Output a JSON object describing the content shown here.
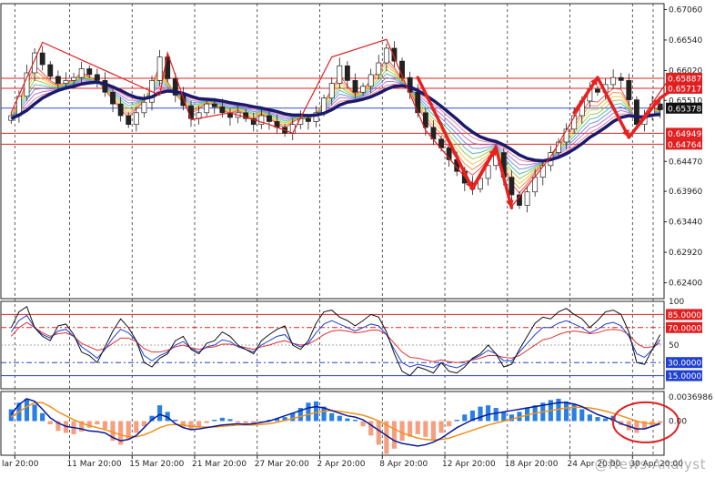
{
  "watermark": "@News Analyst",
  "chart_data": [
    {
      "panel": "price",
      "type": "candlestick",
      "ylim": [
        0.6213,
        0.6716
      ],
      "y_ticks": [
        "0.67060",
        "0.66540",
        "0.66020",
        "0.65510",
        "0.64470",
        "0.63960",
        "0.63440",
        "0.62920",
        "0.62400"
      ],
      "y_tick_values": [
        0.6706,
        0.6654,
        0.6602,
        0.6551,
        0.6447,
        0.6396,
        0.6344,
        0.6292,
        0.624
      ],
      "price_labels": [
        {
          "text": "0.65887",
          "value": 0.65887,
          "color": "#e02020"
        },
        {
          "text": "0.65717",
          "value": 0.65717,
          "color": "#e02020"
        },
        {
          "text": "0.65378",
          "value": 0.65378,
          "color": "#111111"
        },
        {
          "text": "0.64949",
          "value": 0.64949,
          "color": "#e02020"
        },
        {
          "text": "0.64764",
          "value": 0.64764,
          "color": "#e02020"
        }
      ],
      "levels": [
        {
          "value": 0.65887,
          "color": "#e02020"
        },
        {
          "value": 0.65717,
          "color": "#e02020"
        },
        {
          "value": 0.65378,
          "color": "#3050d0"
        },
        {
          "value": 0.64949,
          "color": "#e02020"
        },
        {
          "value": 0.64764,
          "color": "#e02020"
        }
      ],
      "close": [
        0.6525,
        0.6558,
        0.6598,
        0.6632,
        0.6612,
        0.6592,
        0.658,
        0.6585,
        0.659,
        0.6605,
        0.6595,
        0.6585,
        0.6565,
        0.6545,
        0.6525,
        0.651,
        0.653,
        0.6548,
        0.6585,
        0.6625,
        0.6588,
        0.656,
        0.6542,
        0.652,
        0.653,
        0.6545,
        0.654,
        0.653,
        0.6522,
        0.653,
        0.652,
        0.651,
        0.6525,
        0.6515,
        0.6505,
        0.6495,
        0.651,
        0.652,
        0.6515,
        0.653,
        0.6555,
        0.658,
        0.661,
        0.6585,
        0.6565,
        0.6575,
        0.6595,
        0.6615,
        0.664,
        0.6618,
        0.659,
        0.6565,
        0.653,
        0.6505,
        0.6485,
        0.647,
        0.645,
        0.643,
        0.641,
        0.64,
        0.6418,
        0.644,
        0.6462,
        0.642,
        0.639,
        0.6372,
        0.6395,
        0.642,
        0.644,
        0.6462,
        0.648,
        0.6502,
        0.6525,
        0.655,
        0.657,
        0.6565,
        0.6578,
        0.659,
        0.6585,
        0.6552,
        0.651,
        0.6525,
        0.6545,
        0.6535
      ],
      "ema": [
        0.652,
        0.6526,
        0.6534,
        0.6545,
        0.6555,
        0.6562,
        0.6568,
        0.6572,
        0.6575,
        0.6579,
        0.6581,
        0.6582,
        0.6579,
        0.6574,
        0.6568,
        0.6561,
        0.6556,
        0.6554,
        0.6557,
        0.6564,
        0.6567,
        0.6566,
        0.6563,
        0.6558,
        0.6554,
        0.6553,
        0.6552,
        0.655,
        0.6547,
        0.6545,
        0.6543,
        0.654,
        0.6538,
        0.6535,
        0.6532,
        0.6528,
        0.6526,
        0.6526,
        0.6525,
        0.6526,
        0.6529,
        0.6535,
        0.6543,
        0.6548,
        0.655,
        0.6553,
        0.6557,
        0.6563,
        0.657,
        0.6575,
        0.6576,
        0.6574,
        0.6568,
        0.656,
        0.6551,
        0.6541,
        0.653,
        0.6519,
        0.6507,
        0.6497,
        0.6489,
        0.6484,
        0.6481,
        0.6475,
        0.6467,
        0.6458,
        0.6452,
        0.6449,
        0.6448,
        0.645,
        0.6454,
        0.646,
        0.6468,
        0.6477,
        0.6488,
        0.6496,
        0.6505,
        0.6515,
        0.6522,
        0.6525,
        0.6523,
        0.6523,
        0.6526,
        0.6527
      ],
      "annotation_zigzag": [
        [
          0,
          0.653
        ],
        [
          4,
          0.665
        ],
        [
          19,
          0.656
        ],
        [
          20,
          0.6632
        ],
        [
          23,
          0.6518
        ],
        [
          28,
          0.653
        ],
        [
          33,
          0.651
        ],
        [
          36,
          0.6495
        ],
        [
          41,
          0.6625
        ],
        [
          48,
          0.6655
        ],
        [
          53,
          0.65
        ],
        [
          59,
          0.6405
        ],
        [
          62,
          0.6475
        ],
        [
          64,
          0.637
        ],
        [
          69,
          0.6455
        ],
        [
          75,
          0.659
        ],
        [
          79,
          0.6488
        ],
        [
          84,
          0.6585
        ]
      ]
    },
    {
      "panel": "oscillator",
      "type": "line",
      "ylim": [
        0,
        100
      ],
      "y_ticks": [
        "100",
        "50"
      ],
      "y_tick_values": [
        100,
        50
      ],
      "levels": [
        {
          "text": "85.0000",
          "value": 85,
          "color": "#e02020"
        },
        {
          "text": "70.0000",
          "value": 70,
          "color": "#e02020"
        },
        {
          "text": "30.0000",
          "value": 30,
          "color": "#2040d0"
        },
        {
          "text": "15.0000",
          "value": 15,
          "color": "#2040d0"
        }
      ],
      "series_black": [
        70,
        88,
        94,
        70,
        60,
        55,
        72,
        74,
        62,
        42,
        38,
        30,
        48,
        66,
        80,
        70,
        55,
        30,
        25,
        35,
        40,
        55,
        60,
        45,
        40,
        52,
        55,
        65,
        60,
        50,
        45,
        40,
        55,
        62,
        68,
        72,
        50,
        45,
        55,
        75,
        88,
        90,
        82,
        78,
        72,
        78,
        85,
        82,
        65,
        40,
        20,
        15,
        25,
        22,
        18,
        30,
        20,
        18,
        25,
        35,
        40,
        50,
        40,
        25,
        28,
        45,
        60,
        75,
        82,
        80,
        88,
        92,
        85,
        80,
        70,
        78,
        88,
        90,
        85,
        65,
        30,
        28,
        45,
        62
      ],
      "series_blue": [
        65,
        78,
        84,
        70,
        62,
        58,
        66,
        68,
        60,
        48,
        42,
        35,
        45,
        58,
        68,
        64,
        55,
        38,
        32,
        38,
        42,
        50,
        54,
        46,
        42,
        48,
        50,
        56,
        54,
        48,
        45,
        42,
        50,
        55,
        60,
        62,
        52,
        48,
        52,
        64,
        74,
        78,
        74,
        70,
        66,
        70,
        74,
        72,
        62,
        45,
        30,
        25,
        28,
        26,
        24,
        30,
        26,
        24,
        28,
        34,
        38,
        44,
        40,
        32,
        32,
        42,
        52,
        62,
        70,
        70,
        75,
        78,
        74,
        70,
        64,
        68,
        74,
        76,
        72,
        60,
        40,
        36,
        45,
        56
      ],
      "series_red": [
        60,
        70,
        76,
        70,
        64,
        60,
        63,
        64,
        60,
        52,
        48,
        44,
        46,
        52,
        58,
        58,
        54,
        46,
        42,
        42,
        44,
        48,
        50,
        47,
        45,
        47,
        48,
        51,
        51,
        49,
        47,
        45,
        48,
        50,
        53,
        55,
        52,
        50,
        51,
        56,
        62,
        66,
        67,
        66,
        64,
        65,
        67,
        67,
        62,
        52,
        42,
        36,
        35,
        33,
        31,
        33,
        31,
        30,
        31,
        33,
        35,
        38,
        38,
        36,
        35,
        38,
        44,
        50,
        56,
        58,
        62,
        65,
        66,
        65,
        63,
        64,
        67,
        68,
        67,
        62,
        52,
        47,
        48,
        52
      ]
    },
    {
      "panel": "macd",
      "type": "bar+line",
      "ylim": [
        -0.0052,
        0.0045
      ],
      "y_ticks": [
        "0.0036986",
        "0.00"
      ],
      "y_tick_values": [
        0.0036986,
        0.0
      ],
      "histogram": [
        0.0018,
        0.0028,
        0.0034,
        0.0025,
        0.0012,
        -0.0005,
        -0.0015,
        -0.0018,
        -0.002,
        -0.0016,
        -0.001,
        -0.0005,
        -0.0012,
        -0.003,
        -0.0036,
        -0.0028,
        -0.0018,
        -0.0008,
        0.0008,
        0.0024,
        0.0014,
        0.0002,
        -0.001,
        -0.0014,
        -0.0009,
        -0.0003,
        0.0002,
        0.0005,
        0.0003,
        -0.0002,
        -0.0004,
        -0.0006,
        -0.0002,
        0.0002,
        0.0004,
        0.0006,
        0.0012,
        0.002,
        0.0028,
        0.003,
        0.0022,
        0.0012,
        0.0008,
        0.0004,
        0.0002,
        -0.0008,
        -0.0022,
        -0.0036,
        -0.005,
        -0.0042,
        -0.003,
        -0.0024,
        -0.002,
        -0.0024,
        -0.0028,
        -0.0018,
        -0.0008,
        0.0002,
        0.001,
        0.0016,
        0.0022,
        0.0024,
        0.002,
        0.0014,
        0.001,
        0.0014,
        0.002,
        0.0024,
        0.0028,
        0.0032,
        0.0034,
        0.003,
        0.0026,
        0.0018,
        0.001,
        0.0006,
        0.0004,
        0.0008,
        -0.0006,
        -0.0014,
        -0.0018,
        -0.0012,
        -0.0008,
        -0.0003
      ],
      "line_macd": [
        0.001,
        0.0025,
        0.0034,
        0.003,
        0.0018,
        0.0005,
        -0.0003,
        -0.0008,
        -0.001,
        -0.0012,
        -0.0015,
        -0.0016,
        -0.0018,
        -0.0025,
        -0.003,
        -0.0028,
        -0.0022,
        -0.001,
        0.0002,
        0.001,
        0.0006,
        -0.0004,
        -0.001,
        -0.0013,
        -0.0012,
        -0.001,
        -0.0008,
        -0.0006,
        -0.0005,
        -0.0004,
        -0.0005,
        -0.0004,
        -0.0002,
        0.0,
        0.0004,
        0.0008,
        0.0012,
        0.0016,
        0.002,
        0.0022,
        0.002,
        0.0016,
        0.0012,
        0.0008,
        0.0006,
        0.0002,
        -0.0006,
        -0.0014,
        -0.0022,
        -0.003,
        -0.0034,
        -0.0036,
        -0.0038,
        -0.0036,
        -0.0032,
        -0.0026,
        -0.0018,
        -0.001,
        -0.0004,
        0.0002,
        0.0006,
        0.001,
        0.0012,
        0.0014,
        0.0016,
        0.0018,
        0.002,
        0.0022,
        0.0024,
        0.0026,
        0.0028,
        0.0028,
        0.0026,
        0.0022,
        0.0016,
        0.001,
        0.0006,
        0.0002,
        -0.0004,
        -0.0008,
        -0.0012,
        -0.0012,
        -0.0008,
        -0.0004
      ],
      "line_signal": [
        0.0006,
        0.0014,
        0.0022,
        0.0028,
        0.0028,
        0.0022,
        0.0014,
        0.0008,
        0.0002,
        -0.0003,
        -0.0007,
        -0.001,
        -0.0013,
        -0.0017,
        -0.0021,
        -0.0024,
        -0.0024,
        -0.0021,
        -0.0016,
        -0.001,
        -0.0006,
        -0.0005,
        -0.0006,
        -0.0008,
        -0.0009,
        -0.0009,
        -0.0009,
        -0.0008,
        -0.0007,
        -0.0006,
        -0.0006,
        -0.0006,
        -0.0005,
        -0.0004,
        -0.0002,
        0.0001,
        0.0004,
        0.0007,
        0.001,
        0.0013,
        0.0015,
        0.0016,
        0.0015,
        0.0013,
        0.0011,
        0.0009,
        0.0005,
        0.0,
        -0.0006,
        -0.0012,
        -0.0018,
        -0.0022,
        -0.0026,
        -0.0028,
        -0.0029,
        -0.0028,
        -0.0026,
        -0.0022,
        -0.0018,
        -0.0014,
        -0.001,
        -0.0006,
        -0.0003,
        0.0,
        0.0003,
        0.0006,
        0.0009,
        0.0012,
        0.0014,
        0.0016,
        0.0018,
        0.002,
        0.0021,
        0.0021,
        0.002,
        0.0018,
        0.0015,
        0.0012,
        0.0008,
        0.0004,
        0.0,
        -0.0003,
        -0.0004,
        -0.0004
      ]
    }
  ],
  "x_axis": {
    "labels": [
      "lar 20:00",
      "11 Mar 20:00",
      "15 Mar 20:00",
      "21 Mar 20:00",
      "27 Mar 20:00",
      "2 Apr 20:00",
      "8 Apr 20:00",
      "12 Apr 20:00",
      "18 Apr 20:00",
      "24 Apr 20:00",
      "30 Apr 20:00"
    ],
    "label_bars": [
      0,
      7,
      15,
      23,
      31,
      39,
      47,
      55,
      63,
      71,
      79
    ],
    "bar_count": 84
  }
}
